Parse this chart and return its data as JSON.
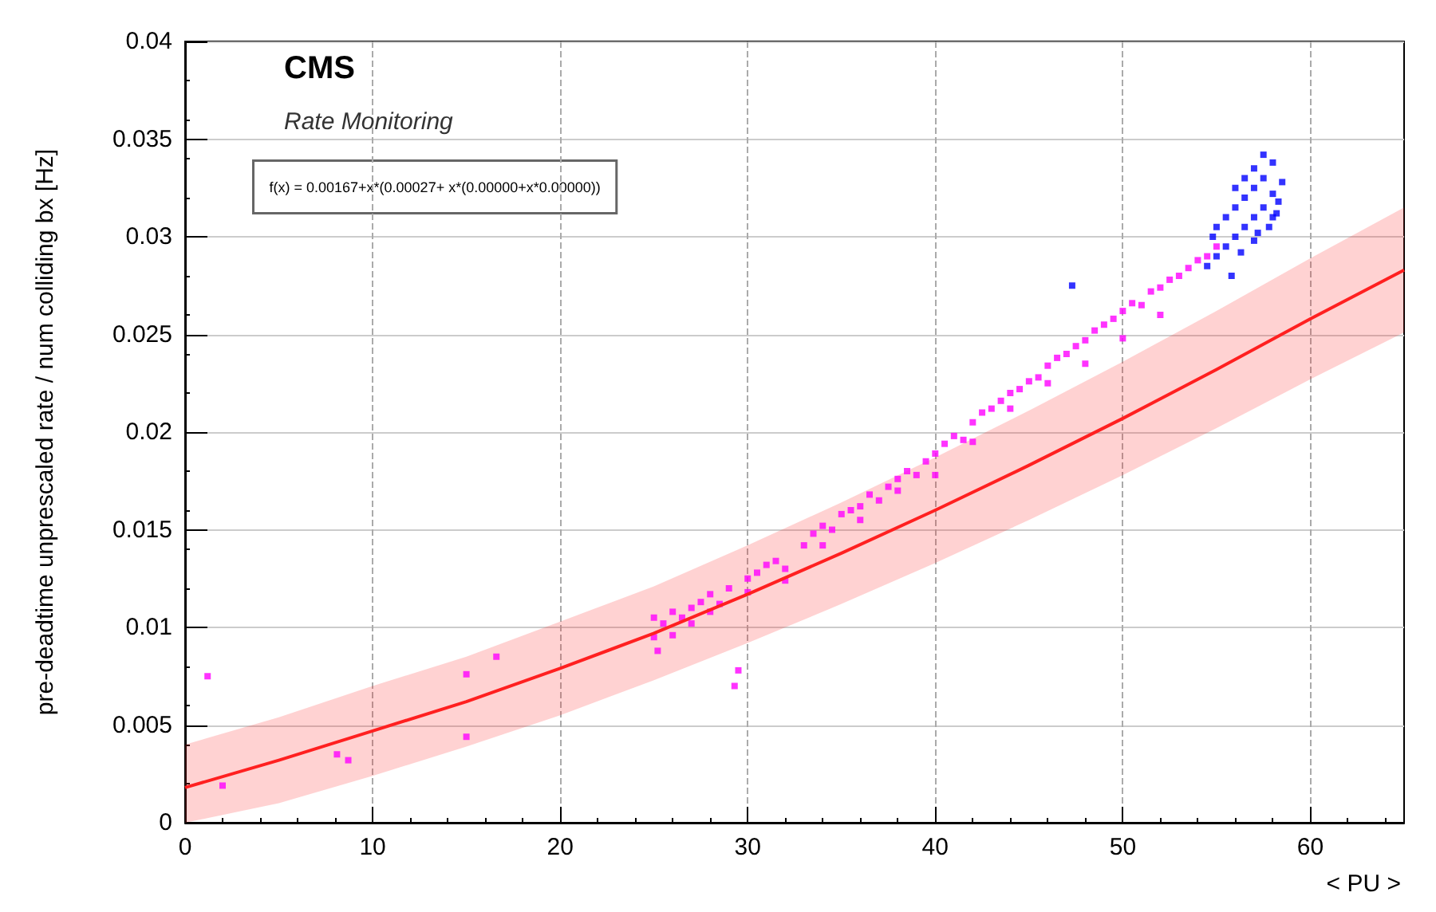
{
  "chart_data": {
    "type": "scatter",
    "title": "CMS",
    "subtitle": "Rate Monitoring",
    "xlabel": "< PU >",
    "ylabel": "pre-deadtime unprescaled rate / num colliding bx [Hz]",
    "annotations": [
      "f(x) = 0.00167+x*(0.00027+ x*(0.00000+x*0.00000))"
    ],
    "xlim": [
      0,
      65
    ],
    "xticks": [
      0,
      10,
      20,
      30,
      40,
      50,
      60
    ],
    "ylim": [
      0,
      0.04
    ],
    "yticks": [
      0,
      0.005,
      0.01,
      0.015,
      0.02,
      0.025,
      0.03,
      0.035,
      0.04
    ],
    "grid": true,
    "marker": "square",
    "series": [
      {
        "type": "line",
        "color": "#ff2020",
        "x": [
          0,
          5,
          10,
          15,
          20,
          25,
          30,
          35,
          40,
          45,
          50,
          55,
          60,
          65
        ],
        "values": [
          0.0018,
          0.0032,
          0.0047,
          0.0062,
          0.0079,
          0.0097,
          0.0117,
          0.0138,
          0.016,
          0.0183,
          0.0207,
          0.0232,
          0.0258,
          0.0283
        ],
        "lower": [
          0,
          0.001,
          0.0024,
          0.0039,
          0.0055,
          0.0073,
          0.0092,
          0.0112,
          0.0133,
          0.0155,
          0.0178,
          0.0202,
          0.0227,
          0.0251
        ],
        "upper": [
          0.004,
          0.0054,
          0.007,
          0.0085,
          0.0103,
          0.0121,
          0.0142,
          0.0164,
          0.0187,
          0.0211,
          0.0236,
          0.0262,
          0.0289,
          0.0315
        ],
        "line_style": "solid",
        "marker": "none"
      },
      {
        "color": "#ff00ff",
        "x": [
          1.2,
          2,
          8.1,
          8.7,
          15,
          15,
          16.6,
          25,
          25,
          25.2,
          25.5,
          26,
          26.5,
          27,
          27.5,
          28,
          28.5,
          29,
          29.3,
          29.5,
          30,
          30.5,
          31,
          31.5,
          32,
          33,
          33.5,
          34,
          34.5,
          35,
          35.5,
          36,
          36.5,
          37,
          37.5,
          38,
          38.5,
          39,
          39.5,
          40,
          40.5,
          41,
          41.5,
          42,
          42.5,
          43,
          43.5,
          44,
          44.5,
          45,
          45.5,
          46,
          46.5,
          47,
          47.5,
          48,
          48.5,
          49,
          49.5,
          50,
          50.5,
          51,
          51.5,
          52,
          52.5,
          53,
          53.5,
          54,
          54.5,
          55,
          26,
          27,
          28,
          30,
          32,
          34,
          36,
          38,
          40,
          42,
          44,
          46,
          48,
          50,
          52
        ],
        "values": [
          0.0075,
          0.0019,
          0.0035,
          0.0032,
          0.0076,
          0.0044,
          0.0085,
          0.0095,
          0.0105,
          0.0088,
          0.0102,
          0.0108,
          0.0105,
          0.011,
          0.0113,
          0.0117,
          0.0112,
          0.012,
          0.007,
          0.0078,
          0.0125,
          0.0128,
          0.0132,
          0.0134,
          0.013,
          0.0142,
          0.0148,
          0.0152,
          0.015,
          0.0158,
          0.016,
          0.0162,
          0.0168,
          0.0165,
          0.0172,
          0.0176,
          0.018,
          0.0178,
          0.0185,
          0.0189,
          0.0194,
          0.0198,
          0.0196,
          0.0205,
          0.021,
          0.0212,
          0.0216,
          0.022,
          0.0222,
          0.0226,
          0.0228,
          0.0234,
          0.0238,
          0.024,
          0.0244,
          0.0247,
          0.0252,
          0.0255,
          0.0258,
          0.0262,
          0.0266,
          0.0265,
          0.0272,
          0.0274,
          0.0278,
          0.028,
          0.0284,
          0.0288,
          0.029,
          0.0295,
          0.0096,
          0.0102,
          0.0108,
          0.0118,
          0.0124,
          0.0142,
          0.0155,
          0.017,
          0.0178,
          0.0195,
          0.0212,
          0.0225,
          0.0235,
          0.0248,
          0.026
        ]
      },
      {
        "color": "#0000ff",
        "x": [
          47.3,
          54.5,
          55,
          55,
          55.5,
          55.5,
          56,
          56,
          56,
          56.5,
          56.5,
          56.5,
          57,
          57,
          57,
          57,
          57.5,
          57.5,
          57.5,
          58,
          58,
          58,
          58.3,
          58.5,
          55.8,
          56.3,
          57.2,
          57.8,
          54.8,
          58.2
        ],
        "values": [
          0.0275,
          0.0285,
          0.029,
          0.0305,
          0.0295,
          0.031,
          0.03,
          0.0315,
          0.0325,
          0.0305,
          0.032,
          0.033,
          0.031,
          0.0325,
          0.0335,
          0.0298,
          0.0315,
          0.033,
          0.0342,
          0.031,
          0.0322,
          0.0338,
          0.0318,
          0.0328,
          0.028,
          0.0292,
          0.0302,
          0.0305,
          0.03,
          0.0312
        ]
      }
    ]
  }
}
